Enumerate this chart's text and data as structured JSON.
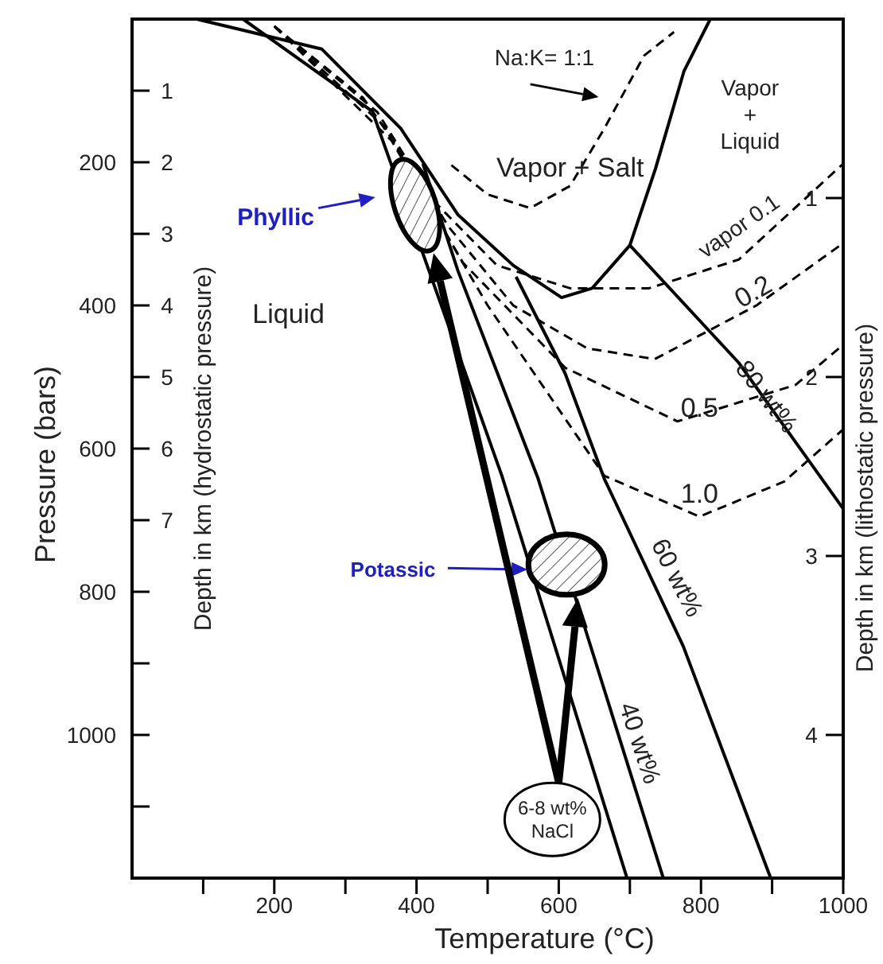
{
  "chart_data": {
    "type": "line",
    "xlabel": "Temperature (°C)",
    "ylabel": "Pressure (bars)",
    "y2label": "Depth in km (hydrostatic pressure)",
    "y3label": "Depth in km (lithostatic pressure)",
    "xlim": [
      0,
      1000
    ],
    "xticks": [
      {
        "value": 100,
        "label": null
      },
      200,
      {
        "value": 300,
        "label": null
      },
      400,
      {
        "value": 500,
        "label": null
      },
      600,
      {
        "value": 700,
        "label": null
      },
      800,
      {
        "value": 900,
        "label": null
      },
      1000
    ],
    "ylim": [
      1200,
      0
    ],
    "yticks": [
      {
        "value": 100,
        "label": null
      },
      200,
      {
        "value": 300,
        "label": null
      },
      400,
      {
        "value": 500,
        "label": null
      },
      600,
      {
        "value": 700,
        "label": null
      },
      800,
      {
        "value": 900,
        "label": null
      },
      1000,
      {
        "value": 1100,
        "label": null
      }
    ],
    "y2lim": [
      12,
      0
    ],
    "y2ticks": [
      1,
      2,
      3,
      4,
      5,
      6,
      7
    ],
    "y3lim": [
      4.8,
      0
    ],
    "y3ticks": [
      1,
      2,
      3,
      4
    ],
    "marker": "none",
    "series": [
      {
        "color": "#000000",
        "line_style": "solid",
        "x": [
          91,
          267,
          378,
          458,
          536,
          604,
          647,
          700,
          736,
          776,
          813
        ],
        "values": [
          0,
          42,
          153,
          273,
          344,
          389,
          376,
          316,
          209,
          73,
          0
        ]
      },
      {
        "color": "#000000",
        "line_style": "solid",
        "x": [
          156,
          338,
          520,
          696
        ],
        "values": [
          0,
          129,
          638,
          1200
        ]
      },
      {
        "color": "#000000",
        "line_style": "solid",
        "x": [
          409,
          458,
          571,
          747
        ],
        "values": [
          202,
          351,
          642,
          1200
        ]
      },
      {
        "color": "#000000",
        "line_style": "solid",
        "x": [
          540,
          609,
          664,
          775,
          898
        ],
        "values": [
          360,
          495,
          642,
          876,
          1200
        ]
      },
      {
        "color": "#000000",
        "line_style": "solid",
        "x": [
          700,
          853,
          1000
        ],
        "values": [
          316,
          480,
          684
        ]
      },
      {
        "color": "#000000",
        "line_style": "dashed",
        "x": [
          449,
          500,
          560,
          616,
          664,
          720,
          762
        ],
        "values": [
          204,
          245,
          264,
          233,
          153,
          51,
          18
        ]
      },
      {
        "color": "#000000",
        "line_style": "dashed",
        "x": [
          200,
          325,
          430,
          513,
          616,
          727,
          853,
          1000
        ],
        "values": [
          10,
          110,
          260,
          344,
          376,
          376,
          336,
          202
        ]
      },
      {
        "color": "#000000",
        "line_style": "dashed",
        "x": [
          200,
          345,
          445,
          536,
          640,
          735,
          878,
          1000
        ],
        "values": [
          10,
          130,
          290,
          400,
          460,
          475,
          400,
          313
        ]
      },
      {
        "color": "#000000",
        "line_style": "dashed",
        "x": [
          200,
          355,
          465,
          609,
          767,
          933,
          1000
        ],
        "values": [
          10,
          150,
          340,
          487,
          562,
          511,
          455
        ]
      },
      {
        "color": "#000000",
        "line_style": "dashed",
        "x": [
          200,
          365,
          500,
          664,
          798,
          917,
          1000
        ],
        "values": [
          10,
          170,
          400,
          638,
          695,
          646,
          573
        ]
      }
    ],
    "annotations": [
      "Na:K= 1:1",
      "Vapor + Salt",
      "Vapor\n+\nLiquid",
      "Liquid",
      "vapor 0.1",
      "0.2",
      "0.5",
      "1.0",
      "80 wt%",
      "60 wt%",
      "40 wt%",
      "Phyllic",
      "Potassic",
      "6-8 wt%\nNaCl"
    ]
  }
}
